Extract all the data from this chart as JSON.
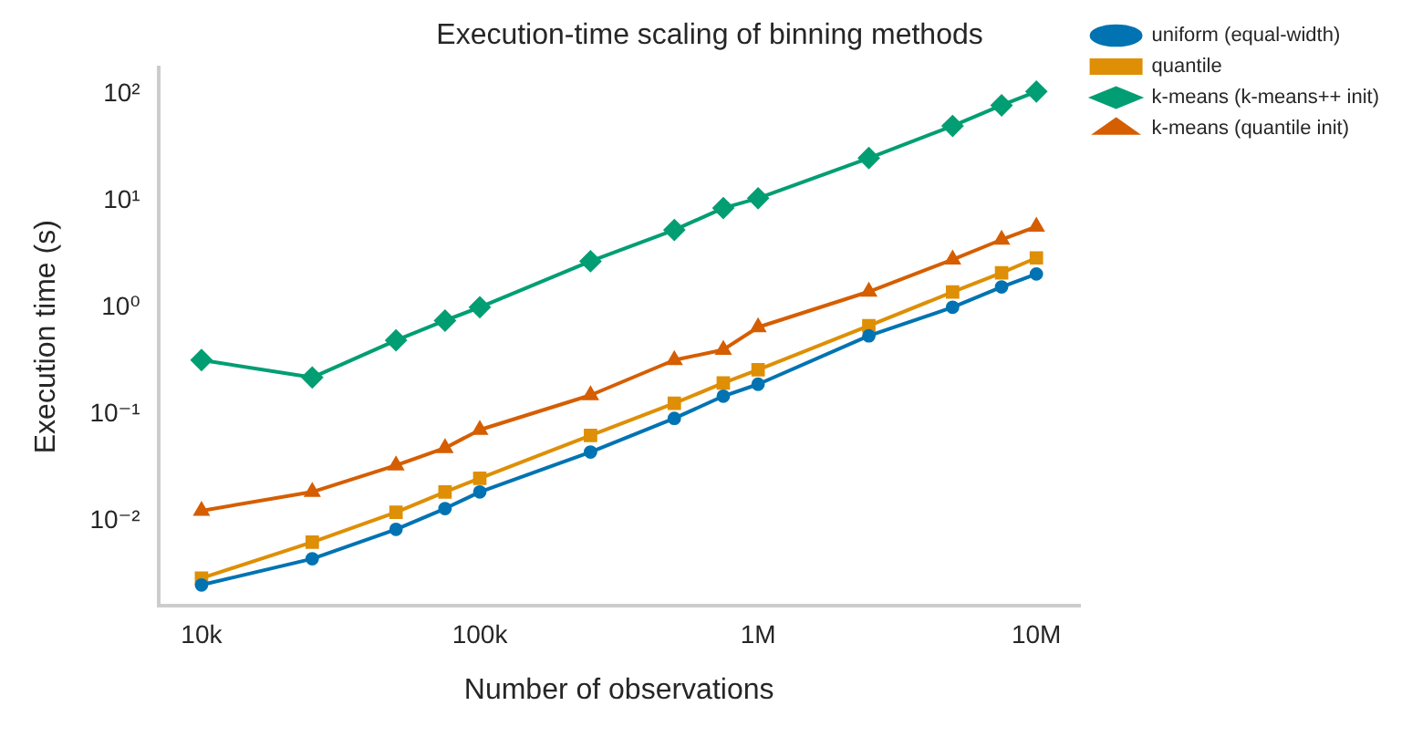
{
  "chart_data": {
    "type": "line",
    "title": "Execution-time scaling of binning methods",
    "xlabel": "Number of observations",
    "ylabel": "Execution time (s)",
    "log": "xy",
    "grid": false,
    "legend": "right",
    "line_style": "solid",
    "x": [
      10000,
      25000,
      50000,
      75000,
      100000,
      250000,
      500000,
      750000,
      1000000,
      2500000,
      5000000,
      7500000,
      10000000
    ],
    "xlim": [
      7000,
      14300000
    ],
    "ylim": [
      0.0016,
      175
    ],
    "xticks": [
      {
        "value": 10000,
        "label": "10k"
      },
      {
        "value": 100000,
        "label": "100k"
      },
      {
        "value": 1000000,
        "label": "1M"
      },
      {
        "value": 10000000,
        "label": "10M"
      }
    ],
    "yticks": [
      {
        "value": 0.01,
        "label": "10⁻²"
      },
      {
        "value": 0.1,
        "label": "10⁻¹"
      },
      {
        "value": 1,
        "label": "10⁰"
      },
      {
        "value": 10,
        "label": "10¹"
      },
      {
        "value": 100,
        "label": "10²"
      }
    ],
    "series": [
      {
        "name": "uniform (equal-width)",
        "color": "#0173b2",
        "marker": "circle",
        "values": [
          0.0025,
          0.0044,
          0.0083,
          0.013,
          0.0186,
          0.044,
          0.091,
          0.147,
          0.19,
          0.54,
          1.0,
          1.55,
          2.05
        ]
      },
      {
        "name": "quantile",
        "color": "#de8f05",
        "marker": "square",
        "values": [
          0.0029,
          0.0063,
          0.012,
          0.0186,
          0.025,
          0.063,
          0.126,
          0.195,
          0.26,
          0.67,
          1.39,
          2.1,
          2.9
        ]
      },
      {
        "name": "k-means (k-means++ init)",
        "color": "#029e73",
        "marker": "diamond",
        "values": [
          0.32,
          0.22,
          0.49,
          0.75,
          1.0,
          2.7,
          5.3,
          8.5,
          10.5,
          25,
          50,
          78,
          105
        ]
      },
      {
        "name": "k-means (quantile init)",
        "color": "#d55e00",
        "marker": "triangle",
        "values": [
          0.0124,
          0.0186,
          0.033,
          0.048,
          0.071,
          0.15,
          0.32,
          0.4,
          0.65,
          1.4,
          2.8,
          4.3,
          5.7
        ]
      }
    ]
  }
}
